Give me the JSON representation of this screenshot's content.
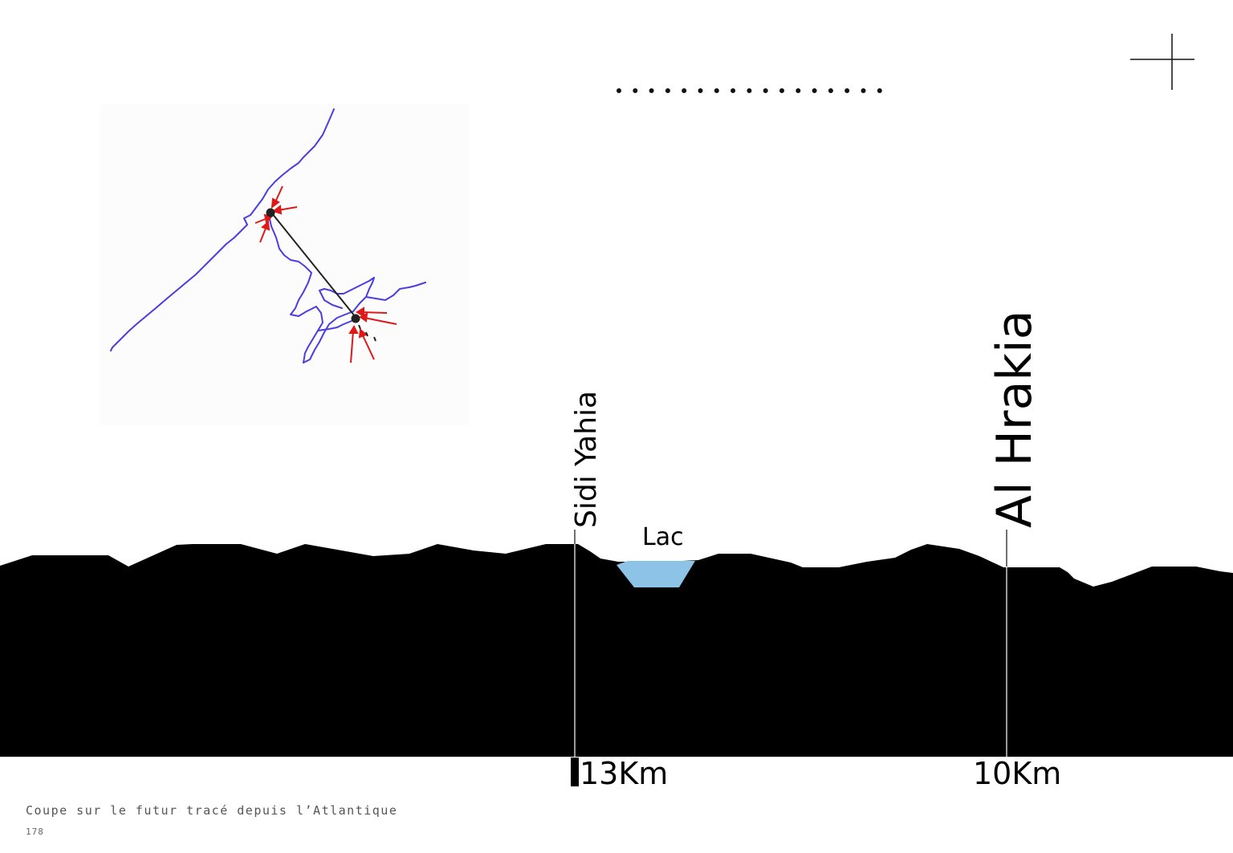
{
  "labels": {
    "place_1": "Sidi Yahia",
    "place_2": "Al Hrakia",
    "lake": "Lac",
    "distance_1": "13Km",
    "distance_2": "10Km"
  },
  "caption": "Coupe sur le futur tracé depuis l’Atlantique",
  "page_number": "178",
  "colors": {
    "terrain": "#000000",
    "lake": "#8cc3e6",
    "river": "#4b3de0",
    "arrows": "#e01818",
    "link": "#222222"
  },
  "icons": {
    "corner_mark": "crosshair-icon",
    "dotted_rule": "dotted-line-icon"
  }
}
